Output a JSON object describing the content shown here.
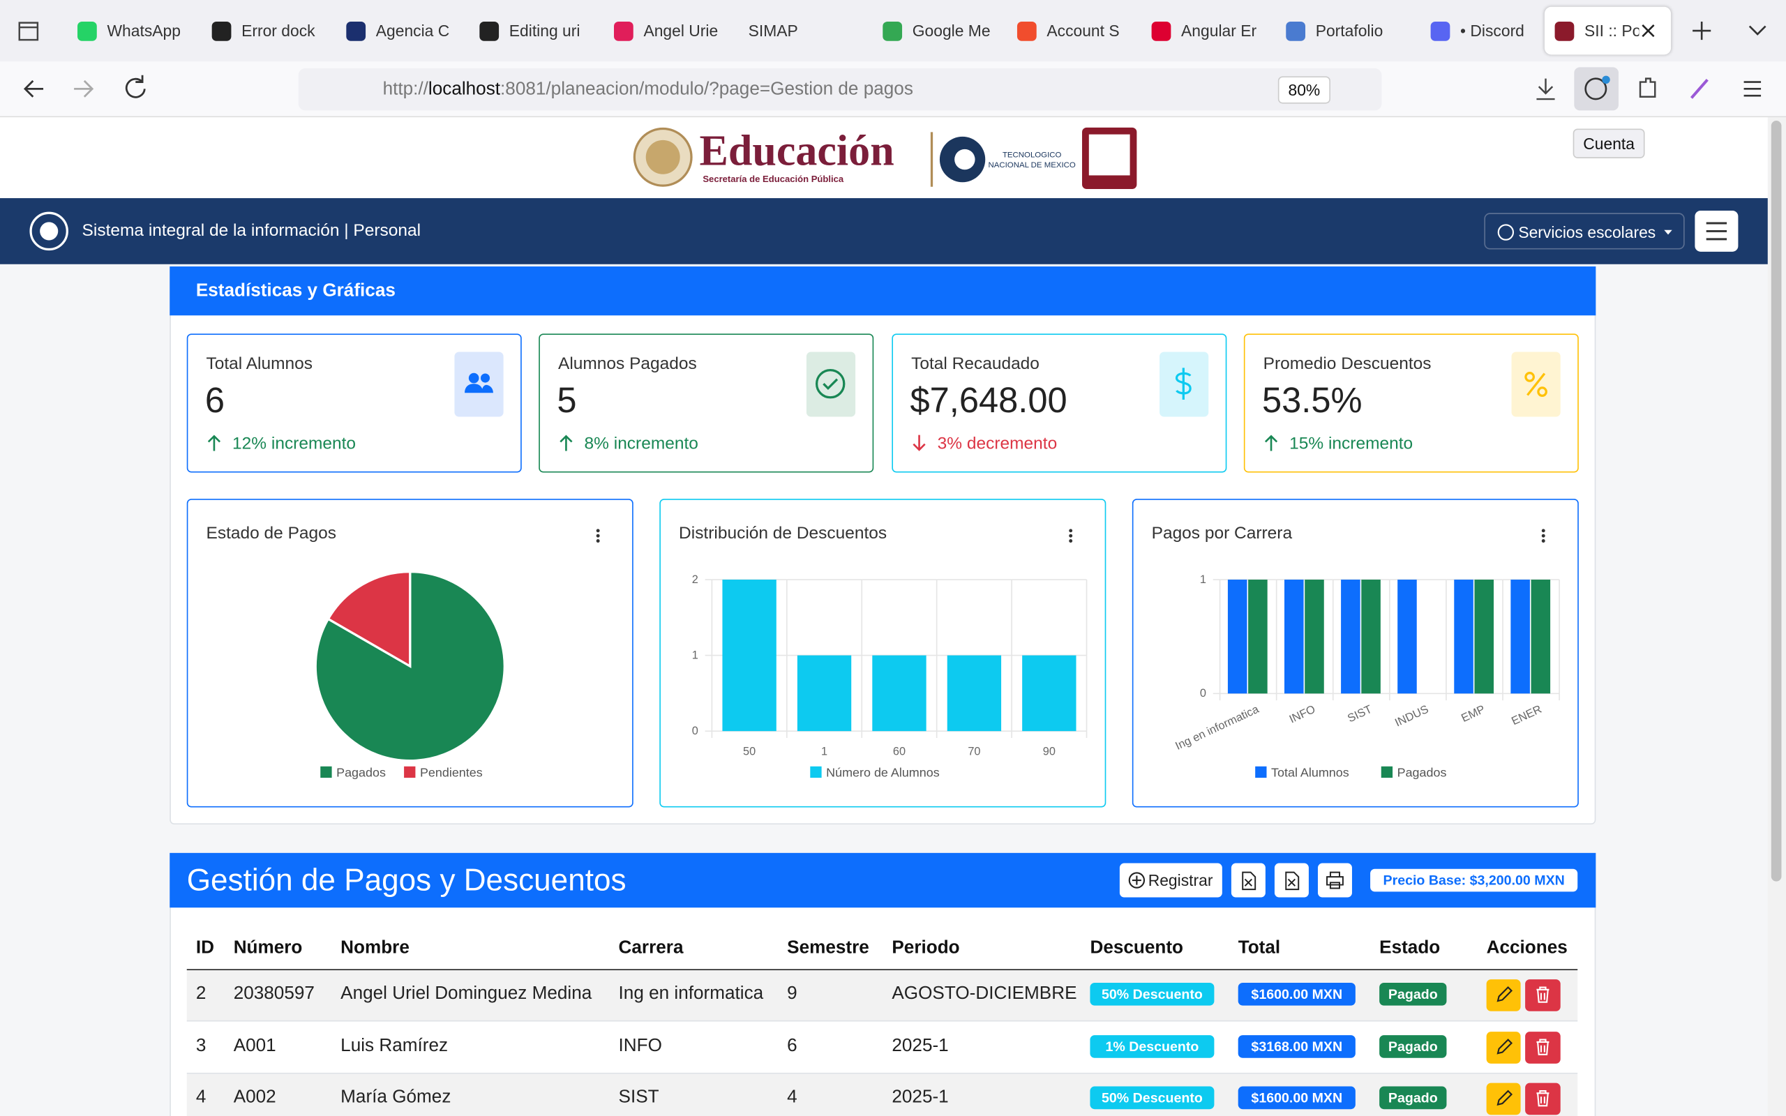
{
  "browser": {
    "tabs": [
      "WhatsApp",
      "Error dock",
      "Agencia C",
      "Editing uri",
      "Angel Urie",
      "SIMAP",
      "Google Me",
      "Account S",
      "Angular Er",
      "Portafolio",
      "• Discord",
      "SII :: Po"
    ],
    "url_scheme": "http://",
    "url_host": "localhost",
    "url_rest": ":8081/planeacion/modulo/?page=Gestion de pagos",
    "zoom": "80%",
    "tooltip": "Cuenta"
  },
  "header": {
    "logo_title": "Educación",
    "logo_subtitle": "Secretaría de Educación Pública",
    "tec_name": "TECNOLOGICO NACIONAL DE MEXICO"
  },
  "navbar": {
    "title": "Sistema integral de la información | Personal",
    "menu": "Servicios escolares"
  },
  "stats": {
    "title": "Estadísticas y Gráficas",
    "cards": [
      {
        "label": "Total Alumnos",
        "value": "6",
        "trend": "12% incremento"
      },
      {
        "label": "Alumnos Pagados",
        "value": "5",
        "trend": "8% incremento"
      },
      {
        "label": "Total Recaudado",
        "value": "$7,648.00",
        "trend": "3% decremento"
      },
      {
        "label": "Promedio Descuentos",
        "value": "53.5%",
        "trend": "15% incremento"
      }
    ]
  },
  "chart_data": [
    {
      "type": "pie",
      "title": "Estado de Pagos",
      "categories": [
        "Pagados",
        "Pendientes"
      ],
      "values": [
        5,
        1
      ],
      "colors": [
        "#198754",
        "#dc3545"
      ]
    },
    {
      "type": "bar",
      "title": "Distribución de Descuentos",
      "categories": [
        "50",
        "1",
        "60",
        "70",
        "90"
      ],
      "series": [
        {
          "name": "Número de Alumnos",
          "color": "#0dcaf0",
          "values": [
            2,
            1,
            1,
            1,
            1
          ]
        }
      ],
      "ylim": [
        0,
        2
      ],
      "yticks": [
        0,
        1,
        2
      ],
      "grid": true
    },
    {
      "type": "bar",
      "title": "Pagos por Carrera",
      "categories": [
        "Ing en informatica",
        "INFO",
        "SIST",
        "INDUS",
        "EMP",
        "ENER"
      ],
      "series": [
        {
          "name": "Total Alumnos",
          "color": "#0d6efd",
          "values": [
            1,
            1,
            1,
            1,
            1,
            1
          ]
        },
        {
          "name": "Pagados",
          "color": "#198754",
          "values": [
            1,
            1,
            1,
            0,
            1,
            1
          ]
        }
      ],
      "ylim": [
        0,
        1
      ],
      "yticks": [
        0,
        1
      ],
      "grid": true
    }
  ],
  "table": {
    "title": "Gestión de Pagos y Descuentos",
    "register": "Registrar",
    "base_price": "Precio Base: $3,200.00 MXN",
    "columns": [
      "ID",
      "Número",
      "Nombre",
      "Carrera",
      "Semestre",
      "Periodo",
      "Descuento",
      "Total",
      "Estado",
      "Acciones"
    ],
    "rows": [
      [
        "2",
        "20380597",
        "Angel Uriel Dominguez Medina",
        "Ing en informatica",
        "9",
        "AGOSTO-DICIEMBRE",
        "50% Descuento",
        "$1600.00 MXN",
        "Pagado"
      ],
      [
        "3",
        "A001",
        "Luis Ramírez",
        "INFO",
        "6",
        "2025-1",
        "1% Descuento",
        "$3168.00 MXN",
        "Pagado"
      ],
      [
        "4",
        "A002",
        "María Gómez",
        "SIST",
        "4",
        "2025-1",
        "50% Descuento",
        "$1600.00 MXN",
        "Pagado"
      ]
    ]
  }
}
